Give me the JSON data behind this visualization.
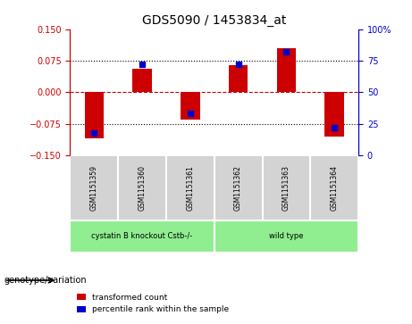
{
  "title": "GDS5090 / 1453834_at",
  "samples": [
    "GSM1151359",
    "GSM1151360",
    "GSM1151361",
    "GSM1151362",
    "GSM1151363",
    "GSM1151364"
  ],
  "transformed_count": [
    -0.11,
    0.055,
    -0.065,
    0.065,
    0.105,
    -0.105
  ],
  "percentile_rank": [
    18,
    72,
    33,
    72,
    82,
    22
  ],
  "ylim_left": [
    -0.15,
    0.15
  ],
  "ylim_right": [
    0,
    100
  ],
  "yticks_left": [
    -0.15,
    -0.075,
    0,
    0.075,
    0.15
  ],
  "yticks_right": [
    0,
    25,
    50,
    75,
    100
  ],
  "hlines_dotted": [
    -0.075,
    0.075
  ],
  "bar_color": "#cc0000",
  "dot_color": "#0000cc",
  "background_color": "#ffffff",
  "genotype_label": "genotype/variation",
  "legend_red": "transformed count",
  "legend_blue": "percentile rank within the sample",
  "group_labels": [
    "cystatin B knockout Cstb-/-",
    "wild type"
  ],
  "group_sample_counts": [
    3,
    3
  ],
  "group_color": "#90EE90",
  "sample_cell_color": "#d3d3d3"
}
